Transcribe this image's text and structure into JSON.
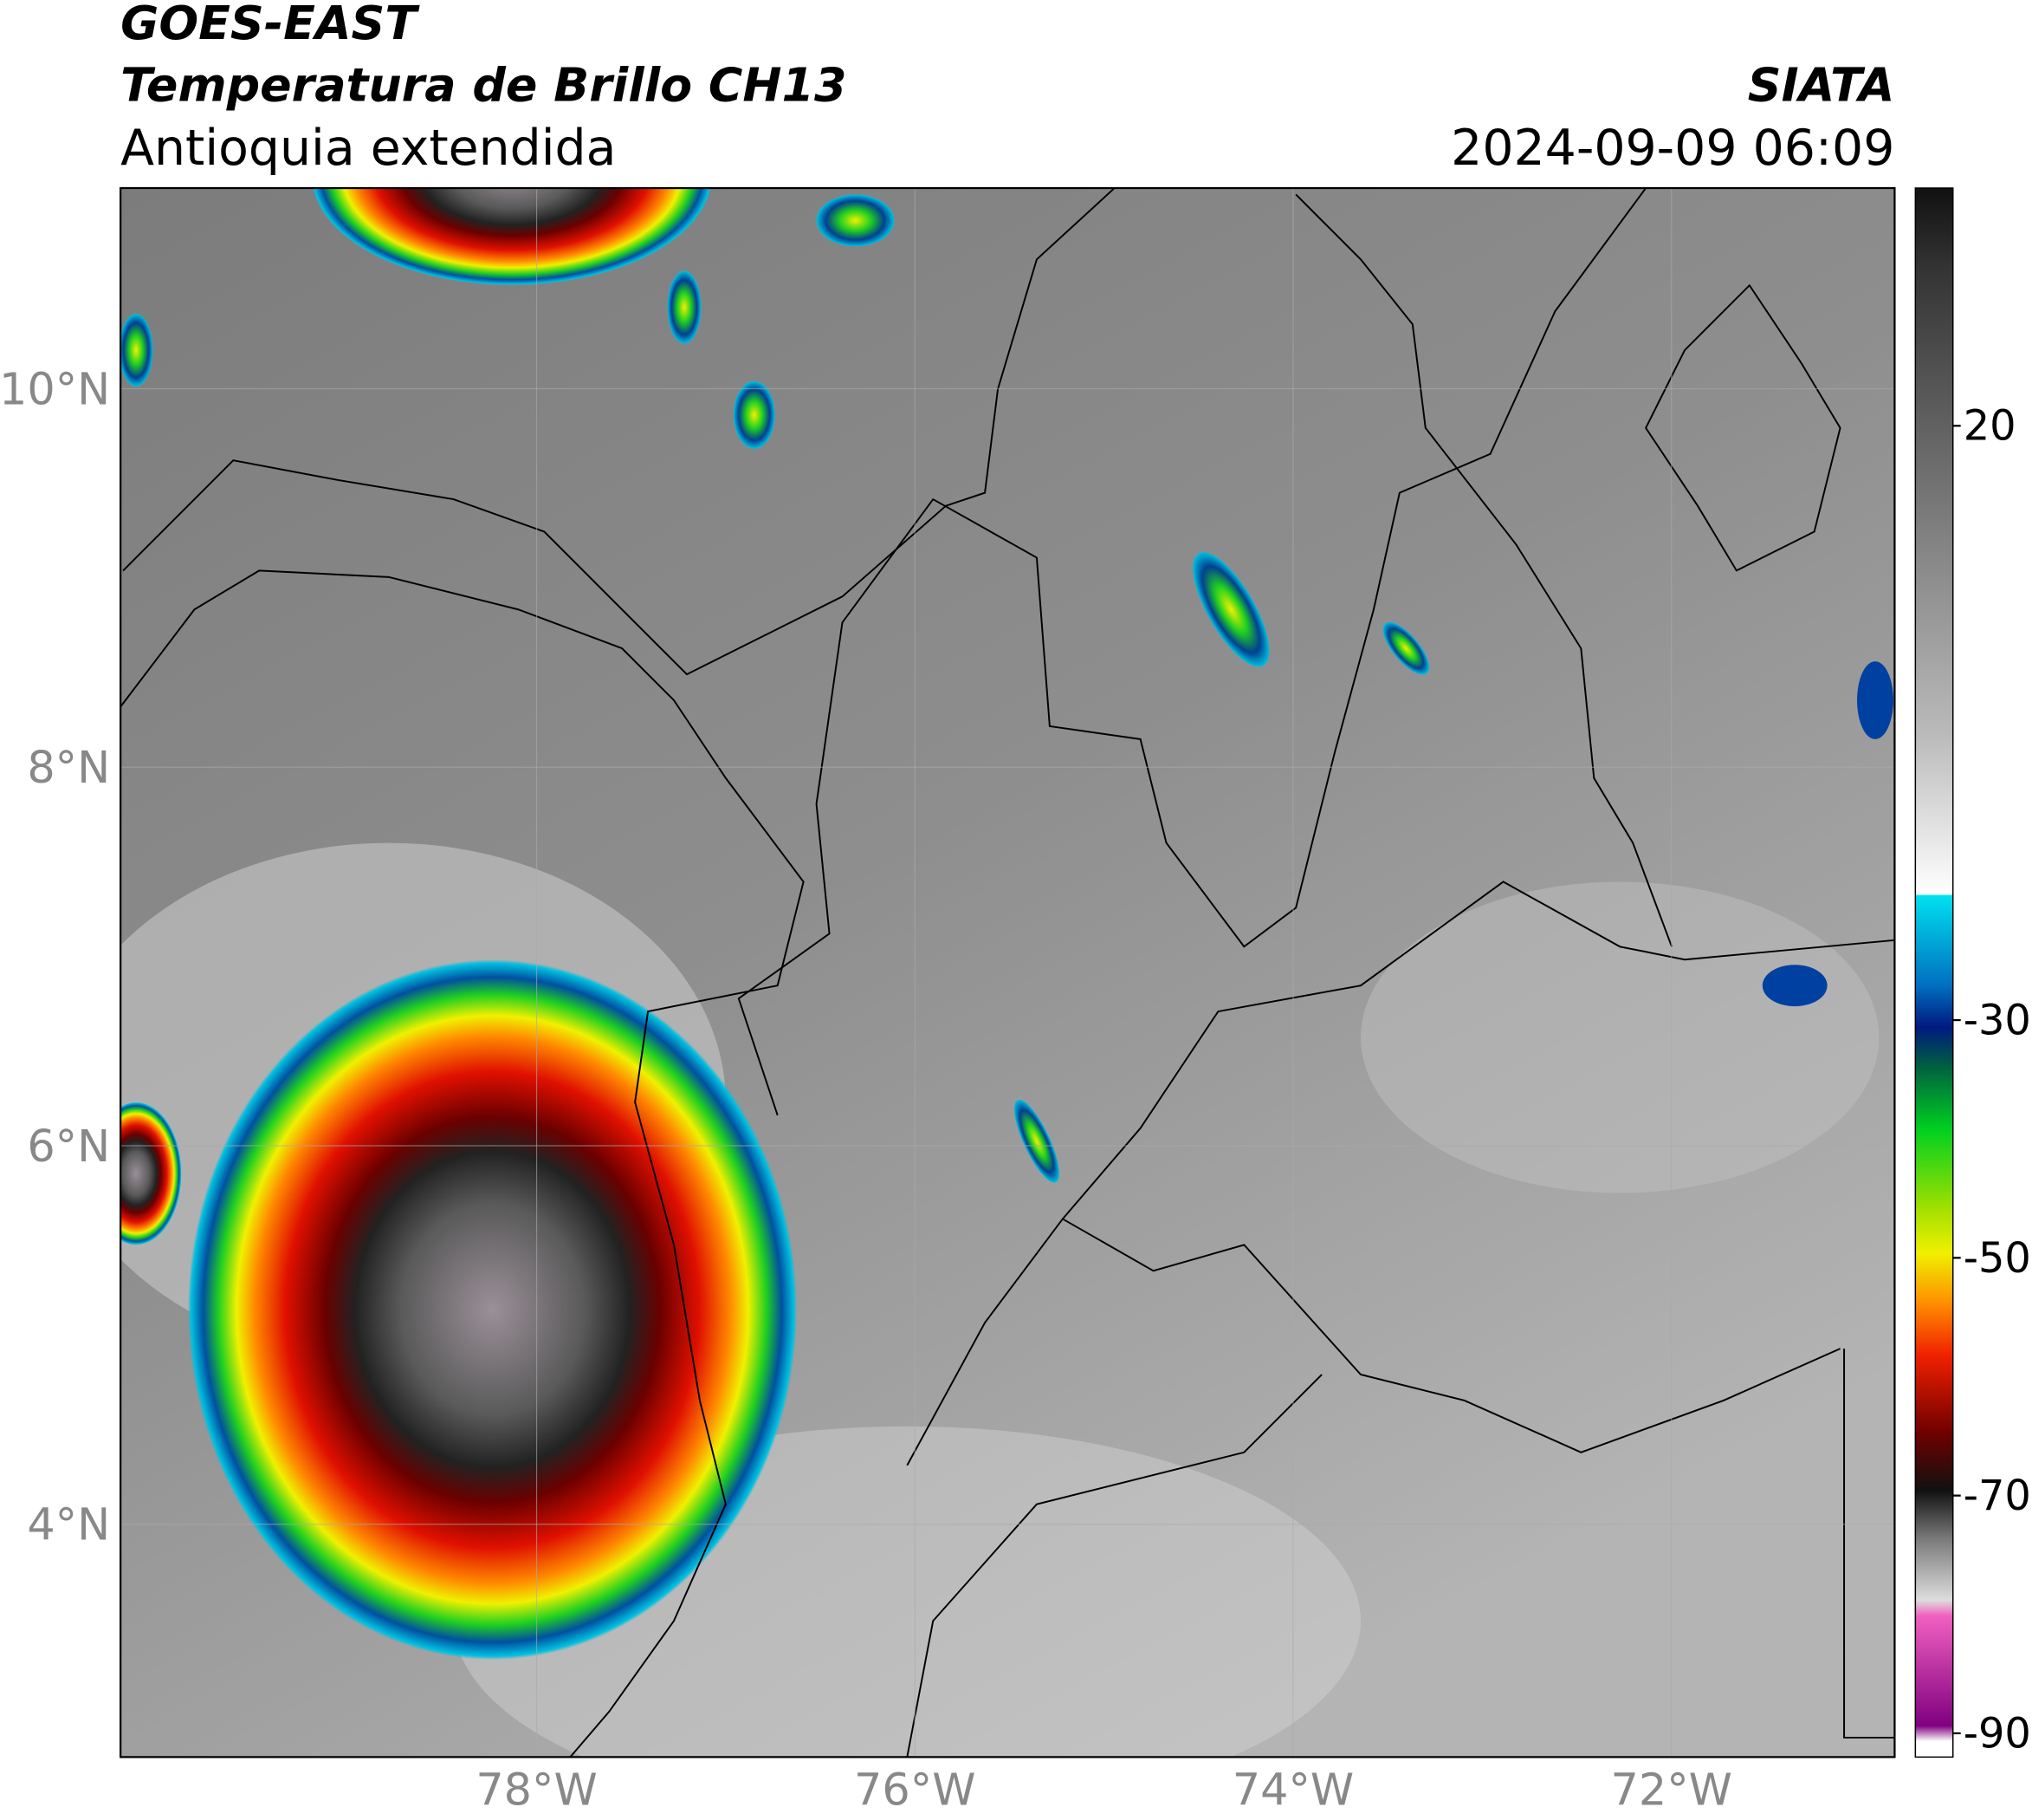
{
  "header": {
    "satellite": "GOES-EAST",
    "product": "Temperatura de Brillo CH13",
    "region": "Antioquia extendida",
    "source": "SIATA",
    "datetime": "2024-09-09 06:09"
  },
  "map": {
    "xlim": [
      -80.2,
      -70.82
    ],
    "ylim": [
      2.77,
      11.06
    ],
    "xticks": [
      {
        "value": -78,
        "label": "78°W"
      },
      {
        "value": -76,
        "label": "76°W"
      },
      {
        "value": -74,
        "label": "74°W"
      },
      {
        "value": -72,
        "label": "72°W"
      }
    ],
    "yticks": [
      {
        "value": 10,
        "label": "10°N"
      },
      {
        "value": 8,
        "label": "8°N"
      },
      {
        "value": 6,
        "label": "6°N"
      },
      {
        "value": 4,
        "label": "4°N"
      }
    ],
    "grid": true
  },
  "colorbar": {
    "lim": [
      -92,
      40
    ],
    "ticks": [
      20,
      -30,
      -50,
      -70,
      -90
    ]
  }
}
